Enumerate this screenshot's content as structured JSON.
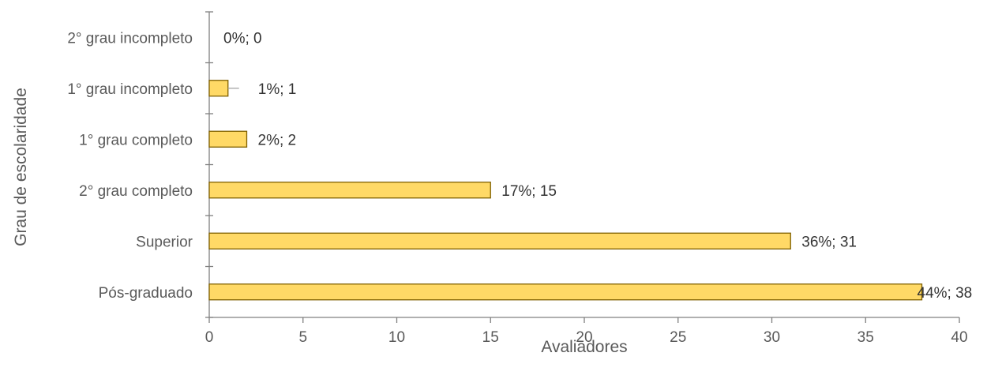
{
  "chart_data": {
    "type": "bar",
    "orientation": "horizontal",
    "categories": [
      "2° grau incompleto",
      "1° grau incompleto",
      "1° grau completo",
      "2° grau completo",
      "Superior",
      "Pós-graduado"
    ],
    "values": [
      0,
      1,
      2,
      15,
      31,
      38
    ],
    "data_labels": [
      "0%; 0",
      "1%; 1",
      "2%; 2",
      "17%; 15",
      "36%; 31",
      "44%; 38"
    ],
    "xlabel": "Avaliadores",
    "ylabel": "Grau de escolaridade",
    "xlim": [
      0,
      40
    ],
    "xticks": [
      0,
      5,
      10,
      15,
      20,
      25,
      30,
      35,
      40
    ],
    "grid": false,
    "legend": "none",
    "colors": {
      "bar_fill": "#FFD966",
      "bar_stroke": "#7F6000",
      "axis": "#808080",
      "text": "#595959"
    }
  }
}
